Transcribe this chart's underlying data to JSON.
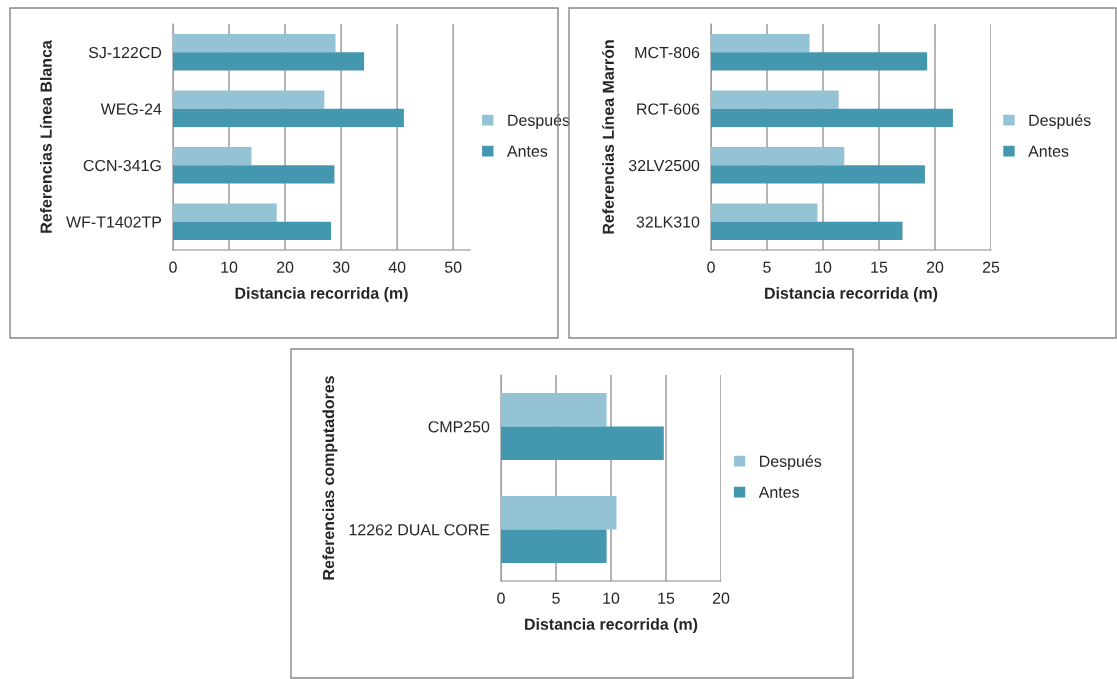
{
  "chart_data": [
    {
      "type": "bar",
      "orientation": "horizontal",
      "xlabel": "Distancia recorrida (m)",
      "ylabel": "Referencias Línea Blanca",
      "categories": [
        "SJ-122CD",
        "WEG-24",
        "CCN-341G",
        "WF-T1402TP"
      ],
      "series": [
        {
          "name": "Después",
          "color": "#93c3d4",
          "values": [
            29.0,
            27.0,
            14.0,
            18.5
          ]
        },
        {
          "name": "Antes",
          "color": "#4398b0",
          "values": [
            34.1,
            41.2,
            28.8,
            28.2
          ]
        }
      ],
      "xlim": [
        0,
        53
      ],
      "xticks": [
        0,
        10,
        20,
        30,
        40,
        50
      ],
      "grid": "x",
      "legend": "right"
    },
    {
      "type": "bar",
      "orientation": "horizontal",
      "xlabel": "Distancia recorrida (m)",
      "ylabel": "Referencias Línea Marrón",
      "categories": [
        "MCT-806",
        "RCT-606",
        "32LV2500",
        "32LK310"
      ],
      "series": [
        {
          "name": "Después",
          "color": "#93c3d4",
          "values": [
            8.8,
            11.4,
            11.9,
            9.5
          ]
        },
        {
          "name": "Antes",
          "color": "#4398b0",
          "values": [
            19.3,
            21.6,
            19.1,
            17.1
          ]
        }
      ],
      "xlim": [
        0,
        25
      ],
      "xticks": [
        0,
        5,
        10,
        15,
        20,
        25
      ],
      "grid": "x",
      "legend": "right"
    },
    {
      "type": "bar",
      "orientation": "horizontal",
      "xlabel": "Distancia recorrida (m)",
      "ylabel": "Referencias computadores",
      "categories": [
        "CMP250",
        "12262 DUAL CORE"
      ],
      "series": [
        {
          "name": "Después",
          "color": "#93c3d4",
          "values": [
            9.6,
            10.5
          ]
        },
        {
          "name": "Antes",
          "color": "#4398b0",
          "values": [
            14.8,
            9.6
          ]
        }
      ],
      "xlim": [
        0,
        20
      ],
      "xticks": [
        0,
        5,
        10,
        15,
        20
      ],
      "grid": "x",
      "legend": "right"
    }
  ]
}
